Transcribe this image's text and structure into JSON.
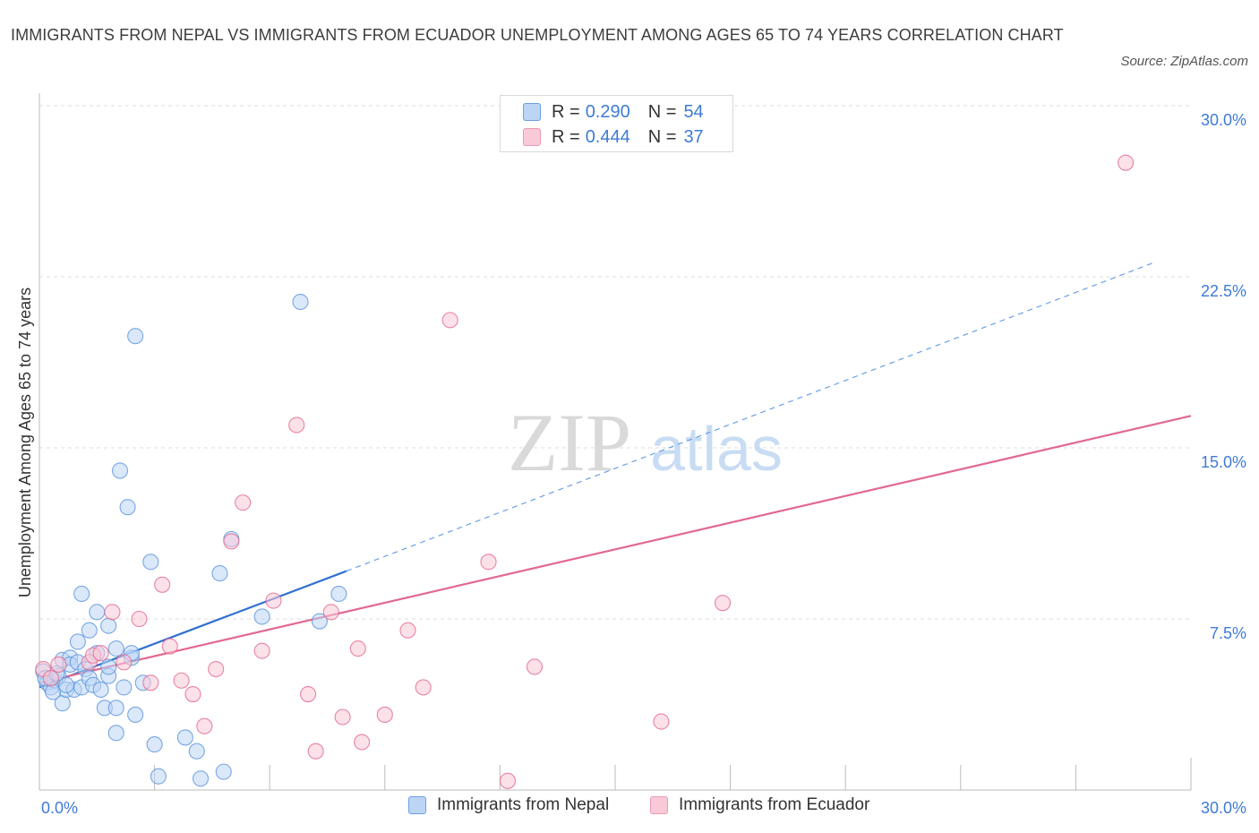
{
  "title": "IMMIGRANTS FROM NEPAL VS IMMIGRANTS FROM ECUADOR UNEMPLOYMENT AMONG AGES 65 TO 74 YEARS CORRELATION CHART",
  "source": "Source: ZipAtlas.com",
  "watermark": {
    "zip": "ZIP",
    "atlas": "atlas"
  },
  "legend": {
    "r_label": "R =",
    "n_label": "N =",
    "rows": [
      {
        "r": "0.290",
        "n": "54",
        "color": "#6aa0e6",
        "fill": "#bcd5f5"
      },
      {
        "r": "0.444",
        "n": "37",
        "color": "#ec9ab4",
        "fill": "#f9c9d7"
      }
    ]
  },
  "chart_data": {
    "type": "scatter",
    "title": "IMMIGRANTS FROM NEPAL VS IMMIGRANTS FROM ECUADOR UNEMPLOYMENT AMONG AGES 65 TO 74 YEARS CORRELATION CHART",
    "xlabel": "",
    "ylabel": "Unemployment Among Ages 65 to 74 years",
    "xlim": [
      0,
      30
    ],
    "ylim": [
      0,
      30
    ],
    "x_tick_labels": [
      "0.0%",
      "30.0%"
    ],
    "y_ticks": [
      7.5,
      15.0,
      22.5,
      30.0
    ],
    "y_tick_labels": [
      "7.5%",
      "15.0%",
      "22.5%",
      "30.0%"
    ],
    "grid": true,
    "legend_position": "top-center",
    "series": [
      {
        "name": "Immigrants from Nepal",
        "color": "#5b93dc",
        "fill": "#bcd5f5",
        "trend": {
          "x0": 0.0,
          "y0": 4.5,
          "x1": 8.0,
          "y1": 9.6,
          "dashed_to_x": 29.0,
          "dashed_to_y": 23.1
        },
        "points": [
          [
            0.1,
            5.2
          ],
          [
            0.2,
            4.7
          ],
          [
            0.3,
            4.5
          ],
          [
            0.4,
            4.8
          ],
          [
            0.5,
            5.0
          ],
          [
            0.6,
            5.7
          ],
          [
            0.6,
            3.8
          ],
          [
            0.7,
            4.4
          ],
          [
            0.8,
            5.8
          ],
          [
            0.8,
            5.5
          ],
          [
            0.9,
            4.4
          ],
          [
            1.0,
            5.6
          ],
          [
            1.0,
            6.5
          ],
          [
            1.1,
            4.5
          ],
          [
            1.1,
            8.6
          ],
          [
            1.2,
            5.3
          ],
          [
            1.3,
            4.9
          ],
          [
            1.3,
            7.0
          ],
          [
            1.4,
            4.6
          ],
          [
            1.5,
            7.8
          ],
          [
            1.5,
            6.0
          ],
          [
            1.6,
            4.4
          ],
          [
            1.7,
            3.6
          ],
          [
            1.8,
            5.0
          ],
          [
            1.8,
            5.4
          ],
          [
            1.8,
            7.2
          ],
          [
            2.0,
            6.2
          ],
          [
            2.0,
            2.5
          ],
          [
            2.0,
            3.6
          ],
          [
            2.1,
            14.0
          ],
          [
            2.2,
            4.5
          ],
          [
            2.3,
            12.4
          ],
          [
            2.4,
            5.8
          ],
          [
            2.4,
            6.0
          ],
          [
            2.5,
            3.3
          ],
          [
            2.5,
            19.9
          ],
          [
            2.7,
            4.7
          ],
          [
            2.9,
            10.0
          ],
          [
            3.0,
            2.0
          ],
          [
            3.1,
            0.6
          ],
          [
            3.8,
            2.3
          ],
          [
            4.1,
            1.7
          ],
          [
            4.2,
            0.5
          ],
          [
            4.7,
            9.5
          ],
          [
            4.8,
            0.8
          ],
          [
            5.0,
            11.0
          ],
          [
            5.8,
            7.6
          ],
          [
            6.8,
            21.4
          ],
          [
            7.3,
            7.4
          ],
          [
            7.8,
            8.6
          ],
          [
            0.15,
            4.9
          ],
          [
            0.35,
            4.3
          ],
          [
            0.7,
            4.6
          ],
          [
            0.45,
            5.1
          ]
        ]
      },
      {
        "name": "Immigrants from Ecuador",
        "color": "#e2688f",
        "fill": "#f9c9d7",
        "trend": {
          "x0": 0.0,
          "y0": 4.7,
          "x1": 30.0,
          "y1": 16.4
        },
        "points": [
          [
            0.1,
            5.3
          ],
          [
            0.5,
            5.5
          ],
          [
            1.3,
            5.6
          ],
          [
            1.4,
            5.9
          ],
          [
            1.6,
            6.0
          ],
          [
            1.9,
            7.8
          ],
          [
            2.2,
            5.6
          ],
          [
            2.6,
            7.5
          ],
          [
            2.9,
            4.7
          ],
          [
            3.2,
            9.0
          ],
          [
            3.4,
            6.3
          ],
          [
            3.7,
            4.8
          ],
          [
            4.0,
            4.2
          ],
          [
            4.3,
            2.8
          ],
          [
            4.6,
            5.3
          ],
          [
            5.0,
            10.9
          ],
          [
            5.3,
            12.6
          ],
          [
            5.8,
            6.1
          ],
          [
            6.1,
            8.3
          ],
          [
            6.7,
            16.0
          ],
          [
            7.0,
            4.2
          ],
          [
            7.2,
            1.7
          ],
          [
            7.6,
            7.8
          ],
          [
            7.9,
            3.2
          ],
          [
            8.3,
            6.2
          ],
          [
            8.4,
            2.1
          ],
          [
            9.0,
            3.3
          ],
          [
            9.6,
            7.0
          ],
          [
            10.0,
            4.5
          ],
          [
            10.7,
            20.6
          ],
          [
            11.7,
            10.0
          ],
          [
            12.2,
            0.4
          ],
          [
            12.9,
            5.4
          ],
          [
            16.2,
            3.0
          ],
          [
            17.8,
            8.2
          ],
          [
            28.3,
            27.5
          ],
          [
            0.3,
            4.9
          ]
        ]
      }
    ]
  },
  "bottom_legend": [
    {
      "label": "Immigrants from Nepal",
      "color": "#6aa0e6",
      "fill": "#bcd5f5"
    },
    {
      "label": "Immigrants from Ecuador",
      "color": "#ec9ab4",
      "fill": "#f9c9d7"
    }
  ]
}
